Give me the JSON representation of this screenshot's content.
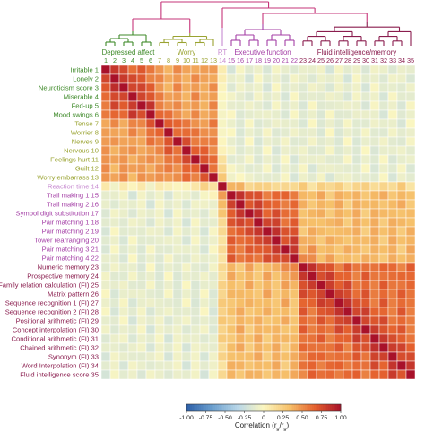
{
  "chart_data": {
    "type": "heatmap",
    "row_labels": [
      "Irritable 1",
      "Lonely 2",
      "Neuroticism score 3",
      "Miserable 4",
      "Fed-up 5",
      "Mood swings 6",
      "Tense 7",
      "Worrier 8",
      "Nerves 9",
      "Nervous 10",
      "Feelings hurt 11",
      "Guilt 12",
      "Worry embarrass 13",
      "Reaction time 14",
      "Trail making 1 15",
      "Trail making 2 16",
      "Symbol digit substitution 17",
      "Pair matching 1 18",
      "Pair matching 2 19",
      "Tower rearranging 20",
      "Pair matching 3 21",
      "Pair matching 4 22",
      "Numeric memory 23",
      "Prospective memory 24",
      "Family relation calculation (FI) 25",
      "Matrix pattern 26",
      "Sequence recognition 1 (FI) 27",
      "Sequence recognition 2 (FI) 28",
      "Positional arithmetic (FI) 29",
      "Concept interpolation (FI) 30",
      "Conditional arithmetic (FI) 31",
      "Chained arithmetic (FI) 32",
      "Synonym (FI) 33",
      "Word Interpolation (FI) 34",
      "Fluid intelligence score 35"
    ],
    "column_numbers": [
      "1",
      "2",
      "3",
      "4",
      "5",
      "6",
      "7",
      "8",
      "9",
      "10",
      "11",
      "12",
      "13",
      "14",
      "15",
      "16",
      "17",
      "18",
      "19",
      "20",
      "21",
      "22",
      "23",
      "24",
      "25",
      "26",
      "27",
      "28",
      "29",
      "30",
      "31",
      "32",
      "33",
      "34",
      "35"
    ],
    "groups": [
      {
        "name": "Depressed affect",
        "start": 1,
        "end": 6,
        "color": "#3f8a2a"
      },
      {
        "name": "Worry",
        "start": 7,
        "end": 13,
        "color": "#9aa331"
      },
      {
        "name": "RT",
        "start": 14,
        "end": 14,
        "color": "#c78ad0"
      },
      {
        "name": "Executive function",
        "start": 15,
        "end": 22,
        "color": "#a43fa6"
      },
      {
        "name": "Fluid intelligence/memory",
        "start": 23,
        "end": 35,
        "color": "#8a1d4e"
      }
    ],
    "block_correlations": {
      "depressed_affect_within": 0.62,
      "worry_within": 0.5,
      "depressed_affect_vs_worry": 0.45,
      "mood_vs_rt": 0.03,
      "mood_vs_cognitive": -0.1,
      "executive_function_within": 0.62,
      "fluid_intelligence_within": 0.62,
      "executive_vs_fluid": 0.35,
      "rt_vs_cognitive": 0.2,
      "diagonal": 1.0
    },
    "colorbar": {
      "min": -1.0,
      "max": 1.0,
      "ticks": [
        "-1.00",
        "-0.75",
        "-0.50",
        "-0.25",
        "0",
        "0.25",
        "0.50",
        "0.75",
        "1.00"
      ],
      "label": "Correlation (r",
      "label_sub1": "g",
      "label_mid": "/r",
      "label_sub2": "g",
      "label_end": ")",
      "colors": [
        "#2c5fa8",
        "#6b9fce",
        "#b9d7e8",
        "#fbf6c0",
        "#f6c06a",
        "#e4602e",
        "#a8112a"
      ]
    },
    "colors": {
      "grid_line": "#ffffff",
      "dendrogram_top": "#c6357a"
    }
  }
}
